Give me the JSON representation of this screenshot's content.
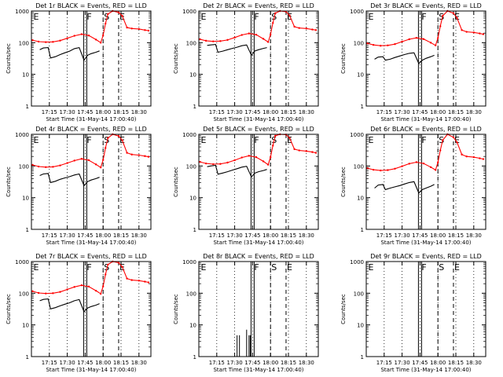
{
  "chart_data": [
    {
      "type": "line",
      "title": "Det 1r BLACK = Events, RED = LLD",
      "xlabel": "Start Time (31-May-14 17:00:40)",
      "ylabel": "Counts/sec",
      "yscale": "log",
      "ylim": [
        1,
        1000
      ],
      "yticks": [
        "1",
        "10",
        "100",
        "1000"
      ],
      "xlim": [
        "17:00",
        "18:40"
      ],
      "xticks": [
        "17:15",
        "17:30",
        "17:45",
        "18:00",
        "18:15",
        "18:30"
      ],
      "flags": [
        {
          "label": "E",
          "x": "17:01"
        },
        {
          "label": "F",
          "x": "17:45"
        },
        {
          "label": "S",
          "x": "18:00"
        },
        {
          "label": "E",
          "x": "18:13"
        }
      ],
      "series": [
        {
          "name": "LLD",
          "color": "#ff0000",
          "x": [
            "17:01",
            "17:06",
            "17:12",
            "17:18",
            "17:24",
            "17:30",
            "17:36",
            "17:42",
            "17:48",
            "17:54",
            "17:58",
            "18:00",
            "18:02",
            "18:04",
            "18:08",
            "18:13",
            "18:16",
            "18:20",
            "18:24",
            "18:30",
            "18:35",
            "18:38"
          ],
          "values": [
            120,
            108,
            104,
            106,
            116,
            138,
            165,
            185,
            168,
            125,
            100,
            170,
            400,
            800,
            1000,
            900,
            700,
            300,
            280,
            270,
            250,
            240
          ]
        },
        {
          "name": "Events",
          "color": "#000000",
          "x": [
            "17:07",
            "17:10",
            "17:14",
            "17:16",
            "17:20",
            "17:24",
            "17:28",
            "17:32",
            "17:36",
            "17:40",
            "17:44",
            "17:47",
            "17:50",
            "17:54",
            "17:57"
          ],
          "values": [
            60,
            68,
            70,
            33,
            36,
            42,
            48,
            54,
            65,
            70,
            28,
            40,
            45,
            50,
            55
          ]
        }
      ]
    },
    {
      "type": "line",
      "title": "Det 2r BLACK = Events, RED = LLD",
      "xlabel": "Start Time (31-May-14 17:00:40)",
      "ylabel": "Counts/sec",
      "yscale": "log",
      "ylim": [
        1,
        1000
      ],
      "yticks": [
        "1",
        "10",
        "100",
        "1000"
      ],
      "xlim": [
        "17:00",
        "18:40"
      ],
      "xticks": [
        "17:15",
        "17:30",
        "17:45",
        "18:00",
        "18:15",
        "18:30"
      ],
      "flags": [
        {
          "label": "E",
          "x": "17:01"
        },
        {
          "label": "F",
          "x": "17:45"
        },
        {
          "label": "S",
          "x": "18:00"
        },
        {
          "label": "E",
          "x": "18:13"
        }
      ],
      "series": [
        {
          "name": "LLD",
          "color": "#ff0000",
          "x": [
            "17:01",
            "17:06",
            "17:12",
            "17:18",
            "17:24",
            "17:30",
            "17:36",
            "17:42",
            "17:48",
            "17:54",
            "17:58",
            "18:00",
            "18:02",
            "18:04",
            "18:08",
            "18:13",
            "18:16",
            "18:20",
            "18:24",
            "18:30",
            "18:35",
            "18:38"
          ],
          "values": [
            128,
            115,
            110,
            112,
            122,
            145,
            175,
            195,
            178,
            132,
            105,
            180,
            420,
            850,
            1000,
            950,
            720,
            320,
            290,
            280,
            260,
            250
          ]
        },
        {
          "name": "Events",
          "color": "#000000",
          "x": [
            "17:07",
            "17:10",
            "17:14",
            "17:16",
            "17:20",
            "17:24",
            "17:28",
            "17:32",
            "17:36",
            "17:40",
            "17:44",
            "17:47",
            "17:50",
            "17:54",
            "17:57"
          ],
          "values": [
            82,
            85,
            88,
            50,
            54,
            60,
            66,
            72,
            80,
            85,
            40,
            55,
            60,
            66,
            70
          ]
        }
      ]
    },
    {
      "type": "line",
      "title": "Det 3r BLACK = Events, RED = LLD",
      "xlabel": "Start Time (31-May-14 17:00:40)",
      "ylabel": "Counts/sec",
      "yscale": "log",
      "ylim": [
        1,
        1000
      ],
      "yticks": [
        "1",
        "10",
        "100",
        "1000"
      ],
      "xlim": [
        "17:00",
        "18:40"
      ],
      "xticks": [
        "17:15",
        "17:30",
        "17:45",
        "18:00",
        "18:15",
        "18:30"
      ],
      "flags": [
        {
          "label": "E",
          "x": "17:01"
        },
        {
          "label": "F",
          "x": "17:45"
        },
        {
          "label": "S",
          "x": "18:00"
        },
        {
          "label": "E",
          "x": "18:13"
        }
      ],
      "series": [
        {
          "name": "LLD",
          "color": "#ff0000",
          "x": [
            "17:01",
            "17:06",
            "17:12",
            "17:18",
            "17:24",
            "17:30",
            "17:36",
            "17:42",
            "17:48",
            "17:54",
            "17:58",
            "18:00",
            "18:02",
            "18:04",
            "18:08",
            "18:13",
            "18:16",
            "18:20",
            "18:24",
            "18:30",
            "18:35",
            "18:38"
          ],
          "values": [
            95,
            85,
            80,
            82,
            90,
            108,
            128,
            142,
            130,
            100,
            82,
            140,
            330,
            700,
            1000,
            850,
            600,
            250,
            220,
            210,
            195,
            185
          ]
        },
        {
          "name": "Events",
          "color": "#000000",
          "x": [
            "17:07",
            "17:10",
            "17:14",
            "17:16",
            "17:20",
            "17:24",
            "17:28",
            "17:32",
            "17:36",
            "17:40",
            "17:44",
            "17:47",
            "17:50",
            "17:54",
            "17:57"
          ],
          "values": [
            30,
            35,
            36,
            28,
            30,
            34,
            38,
            42,
            46,
            48,
            22,
            28,
            32,
            36,
            40
          ]
        }
      ]
    },
    {
      "type": "line",
      "title": "Det 4r BLACK = Events, RED = LLD",
      "xlabel": "Start Time (31-May-14 17:00:40)",
      "ylabel": "Counts/sec",
      "yscale": "log",
      "ylim": [
        1,
        1000
      ],
      "yticks": [
        "1",
        "10",
        "100",
        "1000"
      ],
      "xlim": [
        "17:00",
        "18:40"
      ],
      "xticks": [
        "17:15",
        "17:30",
        "17:45",
        "18:00",
        "18:15",
        "18:30"
      ],
      "flags": [
        {
          "label": "E",
          "x": "17:01"
        },
        {
          "label": "F",
          "x": "17:45"
        },
        {
          "label": "S",
          "x": "18:00"
        },
        {
          "label": "E",
          "x": "18:13"
        }
      ],
      "series": [
        {
          "name": "LLD",
          "color": "#ff0000",
          "x": [
            "17:01",
            "17:06",
            "17:12",
            "17:18",
            "17:24",
            "17:30",
            "17:36",
            "17:42",
            "17:48",
            "17:54",
            "17:58",
            "18:00",
            "18:02",
            "18:04",
            "18:08",
            "18:13",
            "18:16",
            "18:20",
            "18:24",
            "18:30",
            "18:35",
            "18:38"
          ],
          "values": [
            108,
            96,
            92,
            94,
            104,
            124,
            148,
            168,
            152,
            112,
            90,
            155,
            370,
            760,
            1000,
            880,
            650,
            260,
            230,
            220,
            205,
            195
          ]
        },
        {
          "name": "Events",
          "color": "#000000",
          "x": [
            "17:07",
            "17:10",
            "17:14",
            "17:16",
            "17:20",
            "17:24",
            "17:28",
            "17:32",
            "17:36",
            "17:40",
            "17:44",
            "17:47",
            "17:50",
            "17:54",
            "17:57"
          ],
          "values": [
            50,
            56,
            58,
            30,
            33,
            38,
            42,
            46,
            52,
            56,
            24,
            32,
            36,
            40,
            44
          ]
        }
      ]
    },
    {
      "type": "line",
      "title": "Det 5r BLACK = Events, RED = LLD",
      "xlabel": "Start Time (31-May-14 17:00:40)",
      "ylabel": "Counts/sec",
      "yscale": "log",
      "ylim": [
        1,
        1000
      ],
      "yticks": [
        "1",
        "10",
        "100",
        "1000"
      ],
      "xlim": [
        "17:00",
        "18:40"
      ],
      "xticks": [
        "17:15",
        "17:30",
        "17:45",
        "18:00",
        "18:15",
        "18:30"
      ],
      "flags": [
        {
          "label": "E",
          "x": "17:01"
        },
        {
          "label": "F",
          "x": "17:45"
        },
        {
          "label": "S",
          "x": "18:00"
        },
        {
          "label": "E",
          "x": "18:13"
        }
      ],
      "series": [
        {
          "name": "LLD",
          "color": "#ff0000",
          "x": [
            "17:01",
            "17:06",
            "17:12",
            "17:18",
            "17:24",
            "17:30",
            "17:36",
            "17:42",
            "17:48",
            "17:54",
            "17:58",
            "18:00",
            "18:02",
            "18:04",
            "18:08",
            "18:13",
            "18:16",
            "18:20",
            "18:24",
            "18:30",
            "18:35",
            "18:38"
          ],
          "values": [
            135,
            120,
            114,
            116,
            128,
            152,
            185,
            210,
            190,
            140,
            110,
            190,
            440,
            900,
            1000,
            980,
            760,
            340,
            310,
            295,
            275,
            260
          ]
        },
        {
          "name": "Events",
          "color": "#000000",
          "x": [
            "17:07",
            "17:10",
            "17:14",
            "17:16",
            "17:20",
            "17:24",
            "17:28",
            "17:32",
            "17:36",
            "17:40",
            "17:44",
            "17:47",
            "17:50",
            "17:54",
            "17:57"
          ],
          "values": [
            95,
            100,
            105,
            55,
            60,
            66,
            74,
            82,
            92,
            98,
            45,
            60,
            66,
            72,
            78
          ]
        }
      ]
    },
    {
      "type": "line",
      "title": "Det 6r BLACK = Events, RED = LLD",
      "xlabel": "Start Time (31-May-14 17:00:40)",
      "ylabel": "Counts/sec",
      "yscale": "log",
      "ylim": [
        1,
        1000
      ],
      "yticks": [
        "1",
        "10",
        "100",
        "1000"
      ],
      "xlim": [
        "17:00",
        "18:40"
      ],
      "xticks": [
        "17:15",
        "17:30",
        "17:45",
        "18:00",
        "18:15",
        "18:30"
      ],
      "flags": [
        {
          "label": "E",
          "x": "17:01"
        },
        {
          "label": "F",
          "x": "17:45"
        },
        {
          "label": "S",
          "x": "18:00"
        },
        {
          "label": "E",
          "x": "18:13"
        }
      ],
      "series": [
        {
          "name": "LLD",
          "color": "#ff0000",
          "x": [
            "17:01",
            "17:06",
            "17:12",
            "17:18",
            "17:24",
            "17:30",
            "17:36",
            "17:42",
            "17:48",
            "17:54",
            "17:58",
            "18:00",
            "18:02",
            "18:04",
            "18:08",
            "18:13",
            "18:16",
            "18:20",
            "18:24",
            "18:30",
            "18:35",
            "18:38"
          ],
          "values": [
            85,
            76,
            72,
            74,
            82,
            98,
            118,
            132,
            120,
            92,
            75,
            130,
            310,
            650,
            1000,
            800,
            560,
            230,
            200,
            190,
            175,
            165
          ]
        },
        {
          "name": "Events",
          "color": "#000000",
          "x": [
            "17:07",
            "17:10",
            "17:14",
            "17:16",
            "17:20",
            "17:24",
            "17:28",
            "17:32",
            "17:36",
            "17:40",
            "17:44",
            "17:47",
            "17:50",
            "17:54",
            "17:57"
          ],
          "values": [
            20,
            25,
            26,
            18,
            20,
            22,
            24,
            27,
            30,
            32,
            14,
            18,
            20,
            23,
            26
          ]
        }
      ]
    },
    {
      "type": "line",
      "title": "Det 7r BLACK = Events, RED = LLD",
      "xlabel": "Start Time (31-May-14 17:00:40)",
      "ylabel": "Counts/sec",
      "yscale": "log",
      "ylim": [
        1,
        1000
      ],
      "yticks": [
        "1",
        "10",
        "100",
        "1000"
      ],
      "xlim": [
        "17:00",
        "18:40"
      ],
      "xticks": [
        "17:15",
        "17:30",
        "17:45",
        "18:00",
        "18:15",
        "18:30"
      ],
      "flags": [
        {
          "label": "E",
          "x": "17:01"
        },
        {
          "label": "F",
          "x": "17:45"
        },
        {
          "label": "S",
          "x": "18:00"
        },
        {
          "label": "E",
          "x": "18:13"
        }
      ],
      "series": [
        {
          "name": "LLD",
          "color": "#ff0000",
          "x": [
            "17:01",
            "17:06",
            "17:12",
            "17:18",
            "17:24",
            "17:30",
            "17:36",
            "17:42",
            "17:48",
            "17:54",
            "17:58",
            "18:00",
            "18:02",
            "18:04",
            "18:08",
            "18:13",
            "18:16",
            "18:20",
            "18:24",
            "18:30",
            "18:35",
            "18:38"
          ],
          "values": [
            115,
            102,
            98,
            100,
            110,
            132,
            158,
            178,
            162,
            120,
            96,
            165,
            390,
            800,
            1000,
            920,
            680,
            290,
            260,
            250,
            232,
            220
          ]
        },
        {
          "name": "Events",
          "color": "#000000",
          "x": [
            "17:07",
            "17:10",
            "17:14",
            "17:16",
            "17:20",
            "17:24",
            "17:28",
            "17:32",
            "17:36",
            "17:40",
            "17:44",
            "17:47",
            "17:50",
            "17:54",
            "17:57"
          ],
          "values": [
            58,
            64,
            66,
            32,
            35,
            40,
            45,
            50,
            58,
            63,
            26,
            34,
            38,
            42,
            47
          ]
        }
      ]
    },
    {
      "type": "line",
      "title": "Det 8r BLACK = Events, RED = LLD",
      "xlabel": "Start Time (31-May-14 17:00:40)",
      "ylabel": "Counts/sec",
      "yscale": "log",
      "ylim": [
        1,
        1000
      ],
      "yticks": [
        "1",
        "10",
        "100",
        "1000"
      ],
      "xlim": [
        "17:00",
        "18:40"
      ],
      "xticks": [
        "17:15",
        "17:30",
        "17:45",
        "18:00",
        "18:15",
        "18:30"
      ],
      "flags": [
        {
          "label": "E",
          "x": "17:01"
        },
        {
          "label": "F",
          "x": "17:45"
        },
        {
          "label": "S",
          "x": "18:00"
        },
        {
          "label": "E",
          "x": "18:13"
        }
      ],
      "series": [
        {
          "name": "Events",
          "color": "#000000",
          "spikes": true,
          "x": [
            "17:32",
            "17:34",
            "17:40",
            "17:42",
            "17:43"
          ],
          "values": [
            2,
            2,
            3,
            2,
            2
          ]
        }
      ]
    },
    {
      "type": "line",
      "title": "Det 9r BLACK = Events, RED = LLD",
      "xlabel": "Start Time (31-May-14 17:00:40)",
      "ylabel": "Counts/sec",
      "yscale": "log",
      "ylim": [
        1,
        1000
      ],
      "yticks": [
        "1",
        "10",
        "100",
        "1000"
      ],
      "xlim": [
        "17:00",
        "18:40"
      ],
      "xticks": [
        "17:15",
        "17:30",
        "17:45",
        "18:00",
        "18:15",
        "18:30"
      ],
      "flags": [
        {
          "label": "E",
          "x": "17:01"
        },
        {
          "label": "F",
          "x": "17:45"
        },
        {
          "label": "S",
          "x": "18:00"
        },
        {
          "label": "E",
          "x": "18:13"
        }
      ],
      "series": []
    }
  ]
}
